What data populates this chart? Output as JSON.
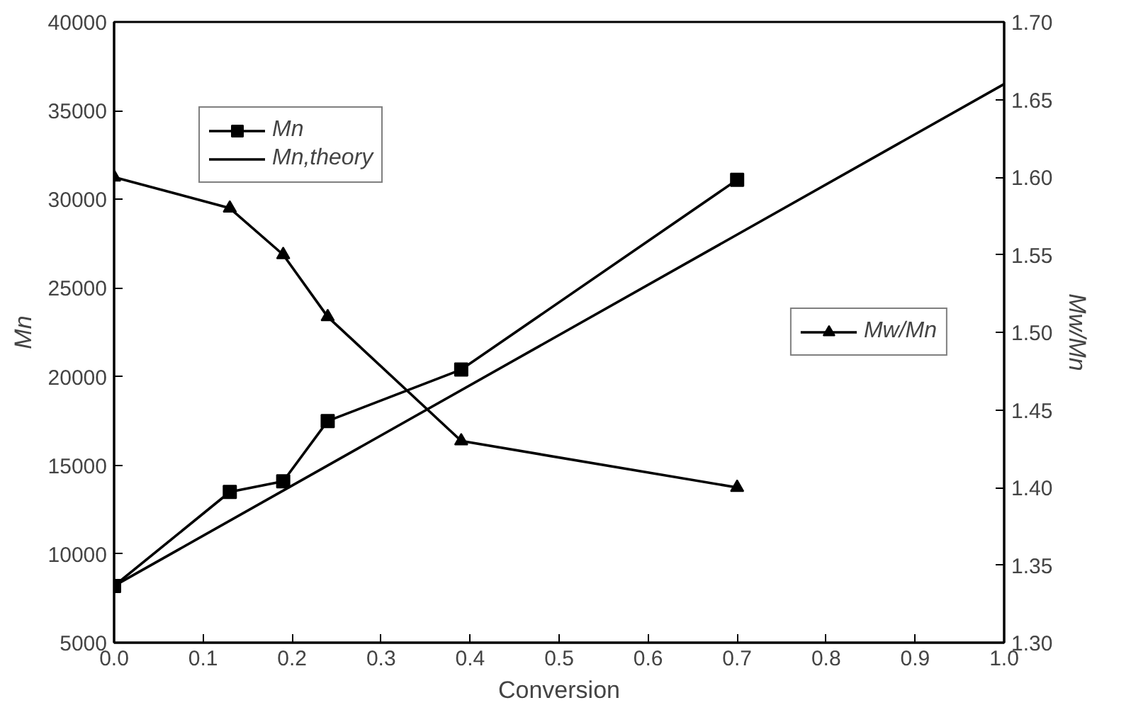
{
  "chart_data": {
    "type": "line",
    "xlabel": "Conversion",
    "ylabel": "Mn",
    "y2label": "Mw/Mn",
    "xlim": [
      0,
      1.0
    ],
    "xticks": [
      {
        "value": 0,
        "label": "0.0"
      },
      0.1,
      0.2,
      0.3,
      0.4,
      0.5,
      0.6,
      0.7,
      0.8,
      0.9,
      {
        "value": 1,
        "label": "1.0"
      }
    ],
    "ylim": [
      5000,
      40000
    ],
    "yticks": [
      5000,
      10000,
      15000,
      20000,
      25000,
      30000,
      35000,
      40000
    ],
    "y2lim": [
      1.3,
      1.7
    ],
    "y2ticks": [
      {
        "value": 1.3,
        "label": "1.30"
      },
      1.35,
      {
        "value": 1.4,
        "label": "1.40"
      },
      1.45,
      {
        "value": 1.5,
        "label": "1.50"
      },
      1.55,
      {
        "value": 1.6,
        "label": "1.60"
      },
      1.65,
      {
        "value": 1.7,
        "label": "1.70"
      }
    ],
    "grid": false,
    "legend": "top left",
    "series": [
      {
        "name": "Mn",
        "color": "#000000",
        "marker": "square",
        "x": [
          0,
          0.13,
          0.19,
          0.24,
          0.39,
          0.7
        ],
        "values": [
          8200,
          13500,
          14100,
          17500,
          20400,
          31100
        ]
      },
      {
        "name": "Mn,theory",
        "color": "#000000",
        "marker": "none",
        "x": [
          0,
          1.0
        ],
        "values": [
          8200,
          36500
        ]
      },
      {
        "name": "Mw/Mn",
        "color": "#000000",
        "marker": "triangle",
        "axis": "y2",
        "x": [
          0,
          0.13,
          0.19,
          0.24,
          0.39,
          0.7
        ],
        "values": [
          1.6,
          1.58,
          1.55,
          1.51,
          1.43,
          1.4
        ]
      }
    ]
  }
}
